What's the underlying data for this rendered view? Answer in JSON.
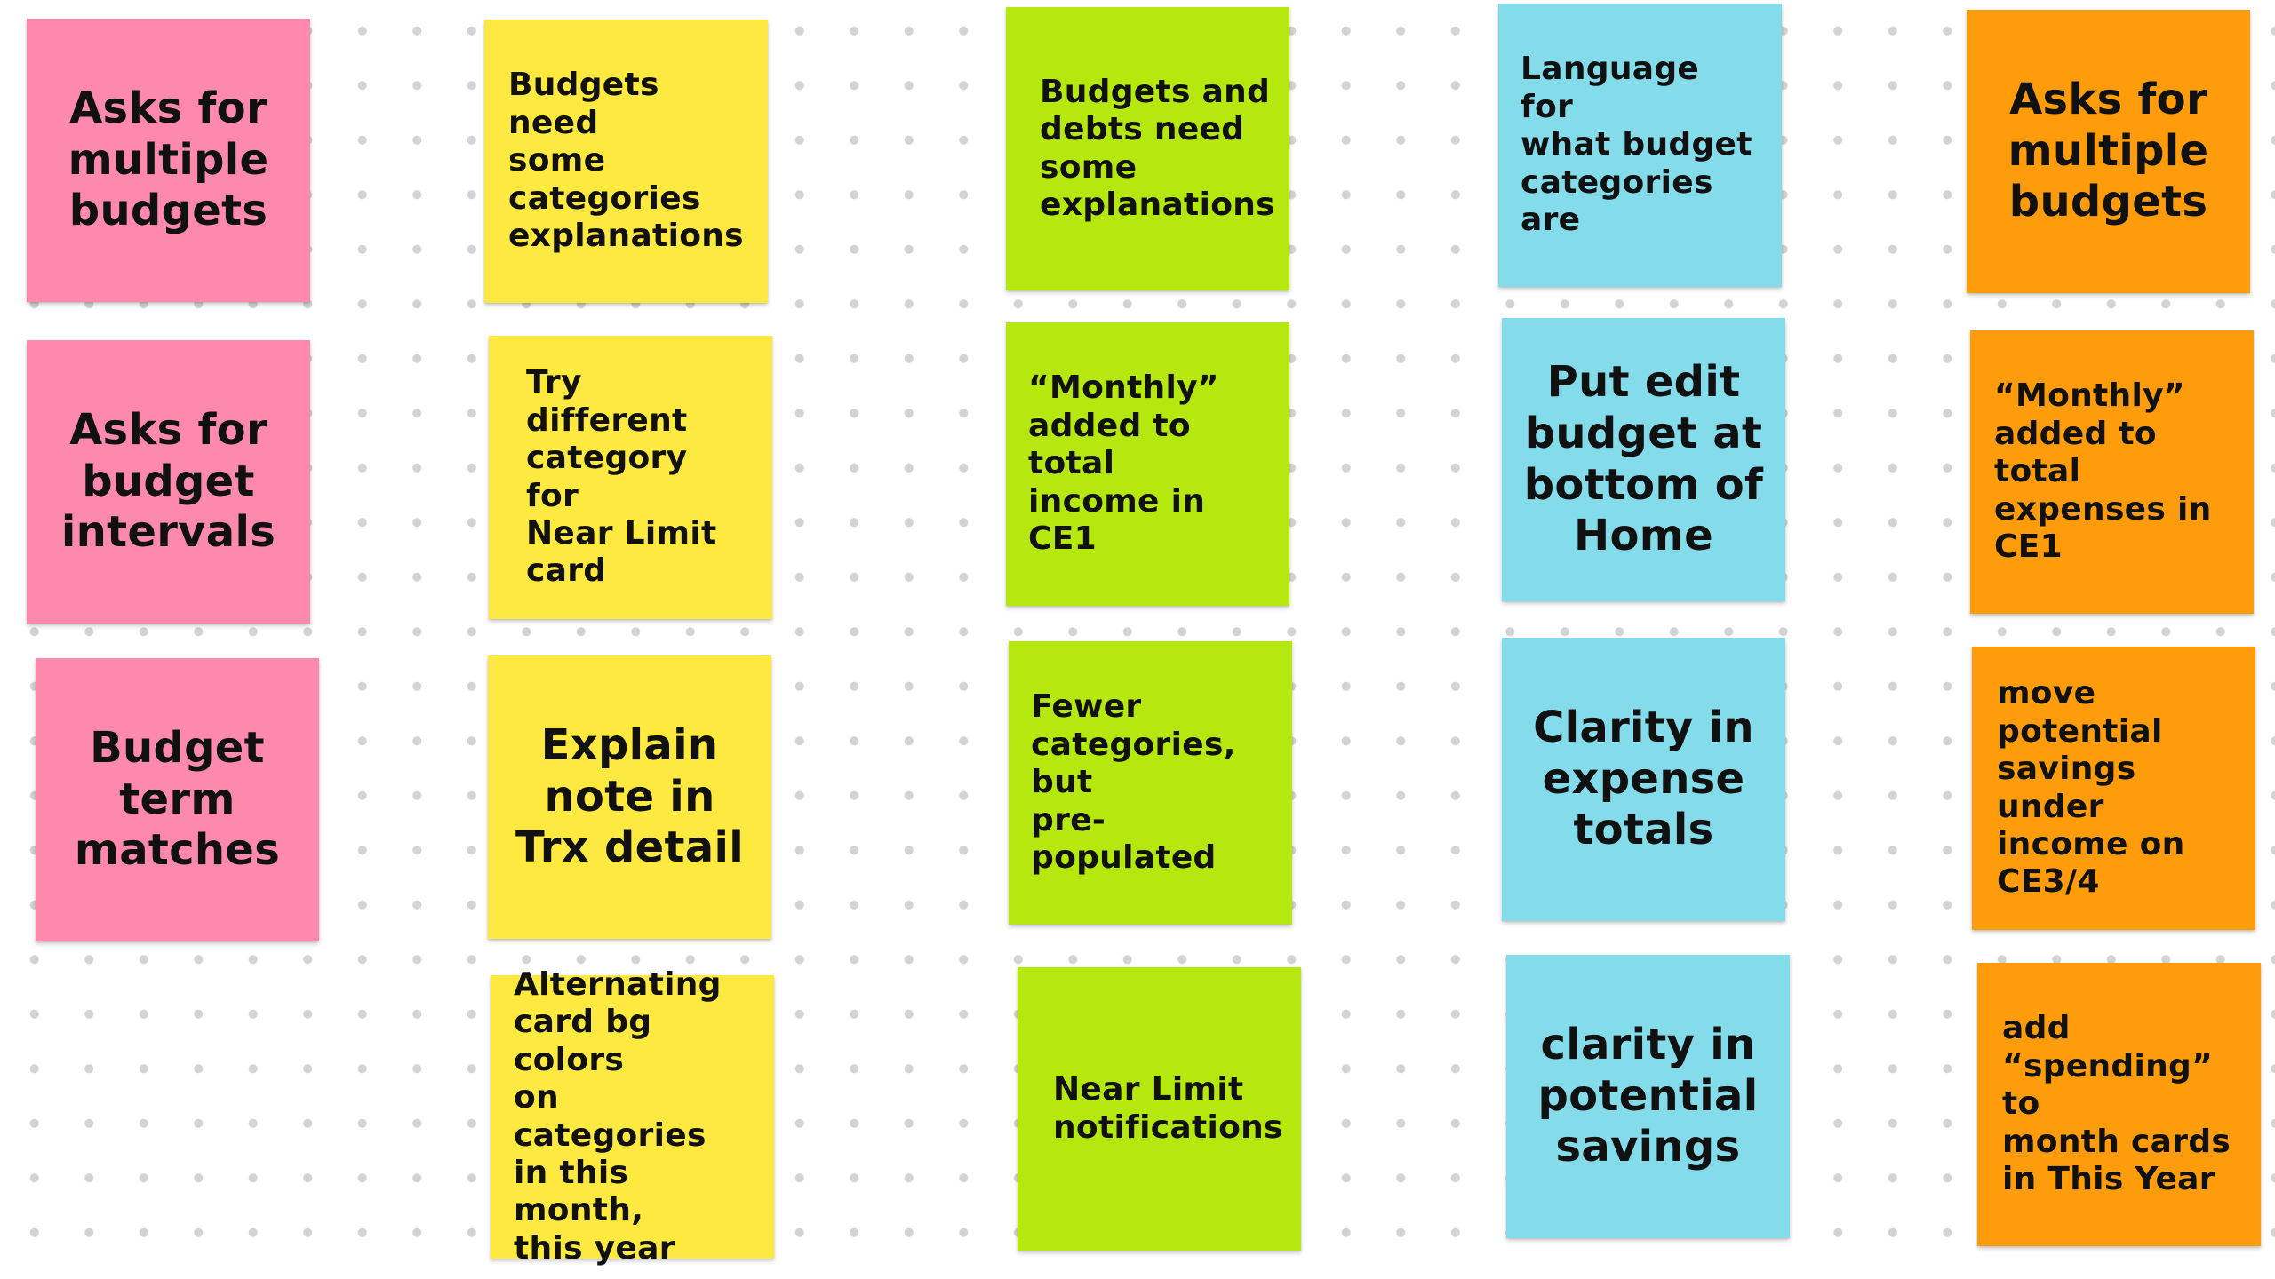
{
  "board": {
    "colors": {
      "pink": "#fd8aad",
      "yellow": "#fde93f",
      "green": "#b5e80f",
      "blue": "#84dbe9",
      "orange": "#fe9c0c",
      "dot_grid": "#d3d3d3"
    },
    "columns": [
      {
        "color": "pink",
        "notes": [
          {
            "text": "Asks for\nmultiple\nbudgets"
          },
          {
            "text": "Asks for\nbudget\nintervals"
          },
          {
            "text": "Budget\nterm\nmatches"
          }
        ]
      },
      {
        "color": "yellow",
        "notes": [
          {
            "text": "Budgets need\nsome\ncategories\nexplanations"
          },
          {
            "text": "Try different\ncategory for\nNear Limit\ncard"
          },
          {
            "text": "Explain\nnote in\nTrx detail"
          },
          {
            "text": "Alternating\ncard bg colors\non categories\nin this month,\nthis year"
          }
        ]
      },
      {
        "color": "green",
        "notes": [
          {
            "text": "Budgets and\ndebts need\nsome\nexplanations"
          },
          {
            "text": "“Monthly”\nadded to total\nincome in CE1"
          },
          {
            "text": "Fewer\ncategories,\nbut\npre-populated"
          },
          {
            "text": "Near Limit\nnotifications"
          }
        ]
      },
      {
        "color": "blue",
        "notes": [
          {
            "text": "Language for\nwhat budget\ncategories are"
          },
          {
            "text": "Put edit\nbudget at\nbottom of\nHome"
          },
          {
            "text": "Clarity in\nexpense\ntotals"
          },
          {
            "text": "clarity in\npotential\nsavings"
          }
        ]
      },
      {
        "color": "orange",
        "notes": [
          {
            "text": "Asks for\nmultiple\nbudgets"
          },
          {
            "text": "“Monthly”\nadded to total\nexpenses in\nCE1"
          },
          {
            "text": "move\npotential\nsavings under\nincome on\nCE3/4"
          },
          {
            "text": "add\n“spending” to\nmonth cards\nin This Year"
          }
        ]
      }
    ]
  }
}
